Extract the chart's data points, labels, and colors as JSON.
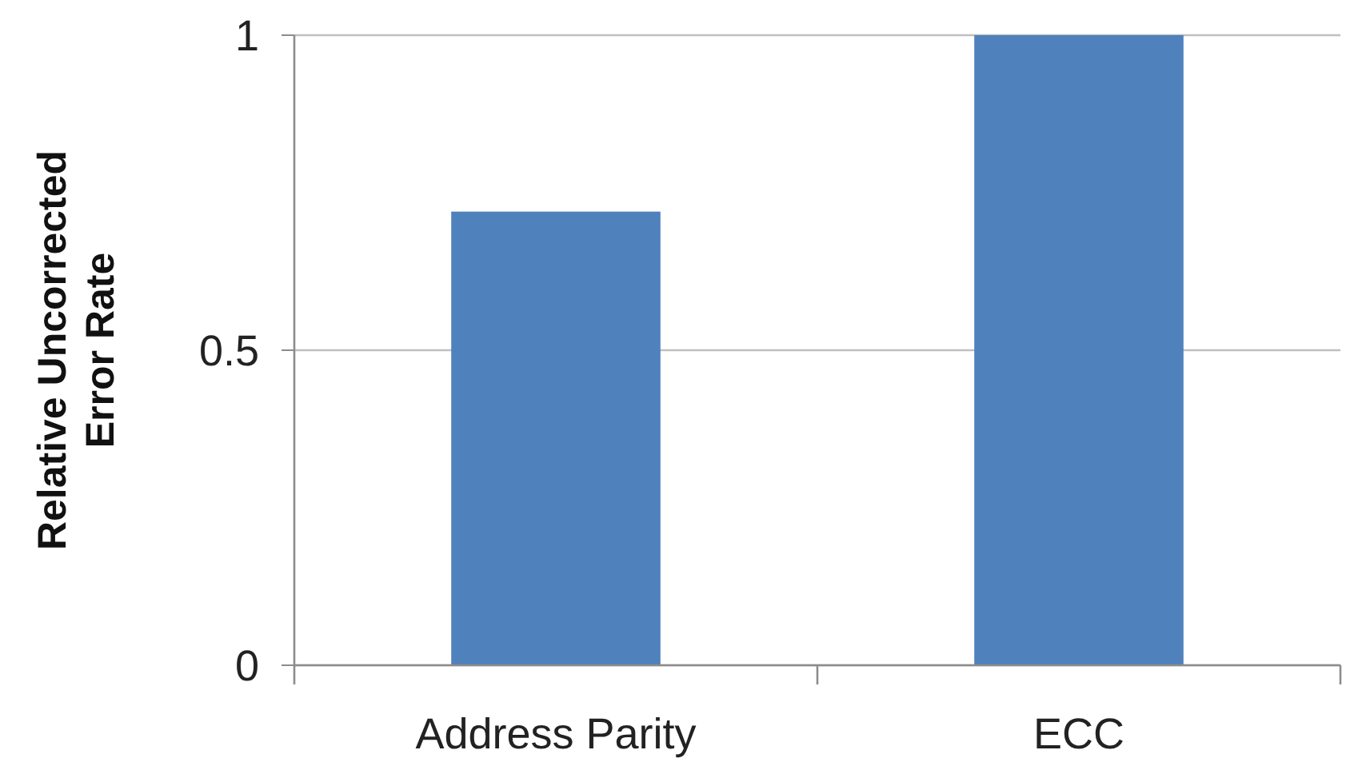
{
  "chart_data": {
    "type": "bar",
    "ylabel": "Relative Uncorrected Error Rate",
    "categories": [
      "Address Parity",
      "ECC"
    ],
    "values": [
      0.72,
      1
    ],
    "color": "#4f81bd",
    "ylim": [
      0,
      1
    ],
    "yticks": [
      0,
      0.5,
      1
    ],
    "grid": "y"
  }
}
